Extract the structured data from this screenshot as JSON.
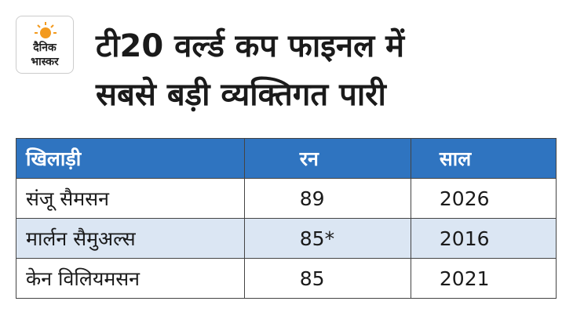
{
  "logo": {
    "line1": "दैनिक",
    "line2": "भास्कर"
  },
  "title": [
    "टी20 वर्ल्ड कप फाइनल में",
    "सबसे बड़ी व्यक्तिगत पारी"
  ],
  "table": {
    "header": [
      "खिलाड़ी",
      "रन",
      "साल"
    ],
    "rows": [
      [
        "संजू सैमसन",
        89,
        2026
      ],
      [
        "मार्लन सैमुअल्स",
        "85*",
        2016
      ],
      [
        "केन विलियमसन",
        85,
        2021
      ]
    ]
  }
}
